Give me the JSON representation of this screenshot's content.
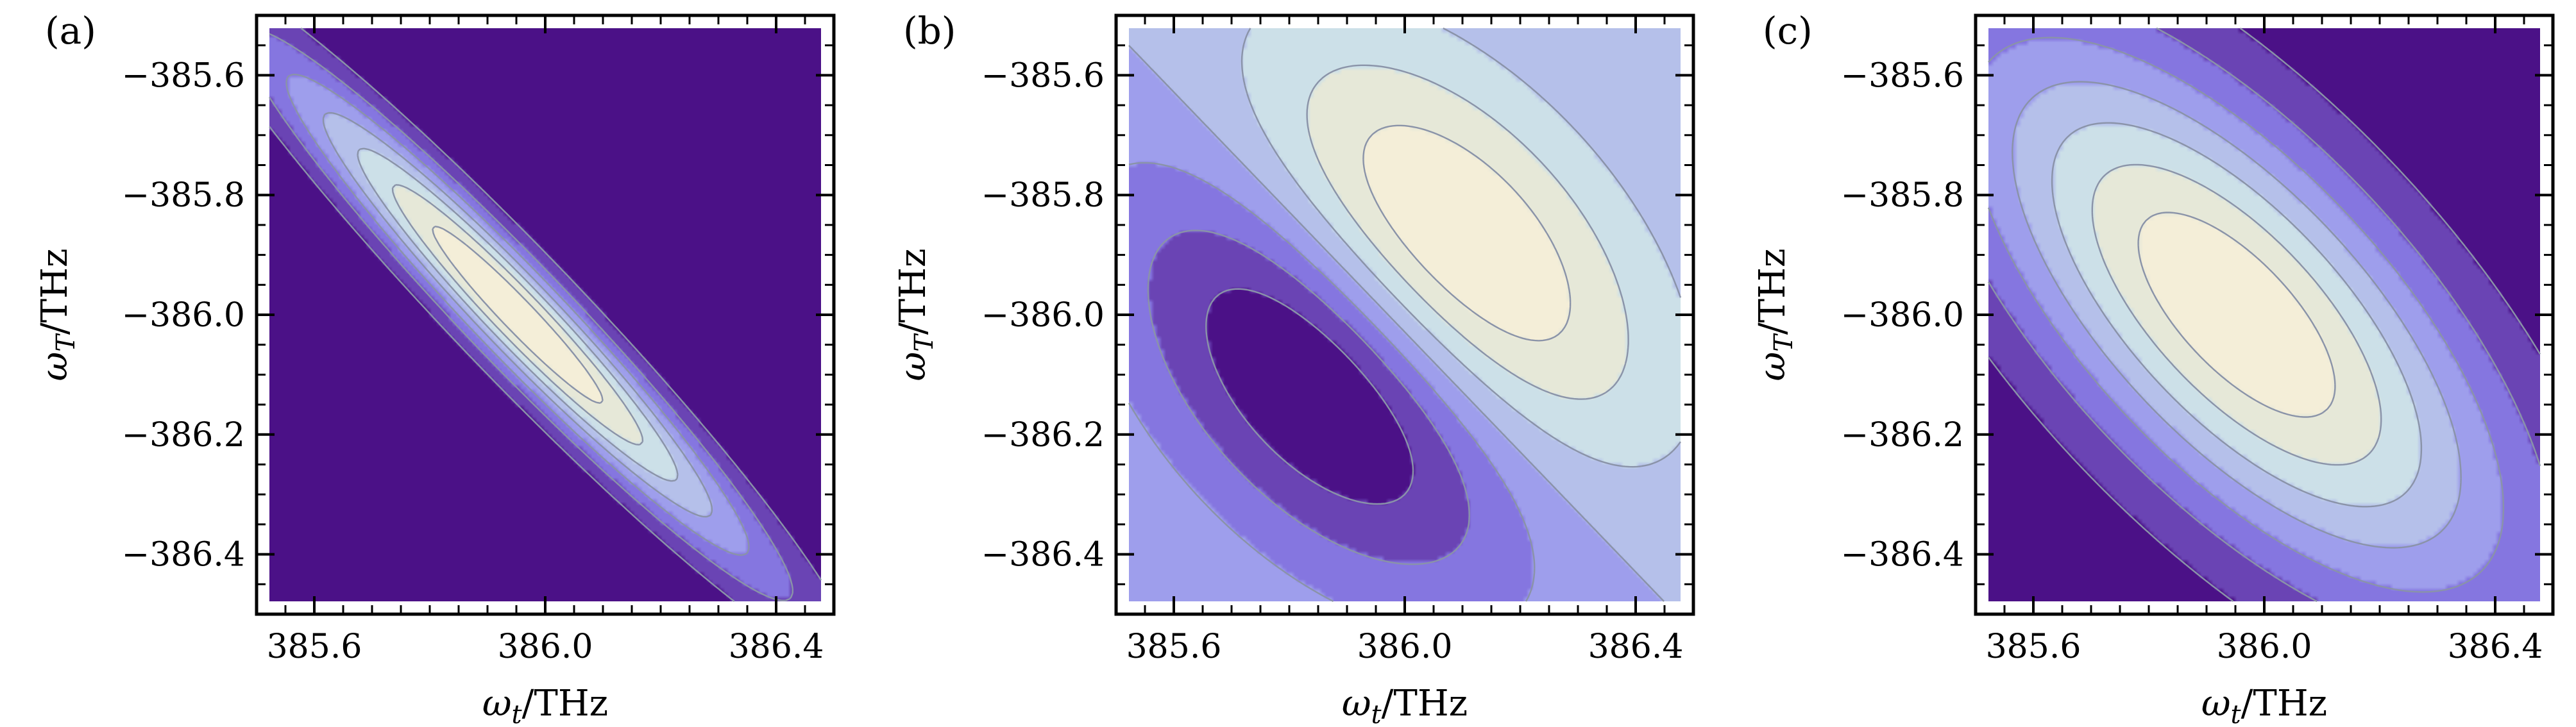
{
  "colors": {
    "levels": [
      "#4b1187",
      "#6a44b4",
      "#8576e0",
      "#9e9eec",
      "#b5c0ea",
      "#cce0e8",
      "#e6e8d8",
      "#f4eed8"
    ],
    "contour_line": "#8a93a8"
  },
  "chart_data": [
    {
      "type": "contour",
      "panel_label": "(a)",
      "xlabel": "ωt/THz",
      "xlabel_main": "ω",
      "xlabel_sub": "t",
      "xlabel_unit": "/THz",
      "ylabel": "ωT/THz",
      "ylabel_main": "ω",
      "ylabel_sub": "T",
      "ylabel_unit": "/THz",
      "xlim": [
        385.5,
        386.5
      ],
      "ylim": [
        -386.5,
        -385.5
      ],
      "xticks": [
        385.6,
        386.0,
        386.4
      ],
      "xtick_labels": [
        "385.6",
        "386.0",
        "386.4"
      ],
      "yticks": [
        -385.6,
        -385.8,
        -386.0,
        -386.2,
        -386.4
      ],
      "ytick_labels": [
        "−385.6",
        "−385.8",
        "−386.0",
        "−386.2",
        "−386.4"
      ],
      "grid": false,
      "surface": {
        "center": [
          385.95,
          -386.0
        ],
        "direction": [
          0.707,
          -0.707
        ],
        "sigma_along": 0.42,
        "sigma_across": 0.055,
        "dipole": 0,
        "levels": 8
      }
    },
    {
      "type": "contour",
      "panel_label": "(b)",
      "xlabel": "ωt/THz",
      "xlabel_main": "ω",
      "xlabel_sub": "t",
      "xlabel_unit": "/THz",
      "ylabel": "ωT/THz",
      "ylabel_main": "ω",
      "ylabel_sub": "T",
      "ylabel_unit": "/THz",
      "xlim": [
        385.5,
        386.5
      ],
      "ylim": [
        -386.5,
        -385.5
      ],
      "xticks": [
        385.6,
        386.0,
        386.4
      ],
      "xtick_labels": [
        "385.6",
        "386.0",
        "386.4"
      ],
      "yticks": [
        -385.6,
        -385.8,
        -386.0,
        -386.2,
        -386.4
      ],
      "ytick_labels": [
        "−385.6",
        "−385.8",
        "−386.0",
        "−386.2",
        "−386.4"
      ],
      "grid": false,
      "surface": {
        "center": [
          385.97,
          -386.0
        ],
        "direction": [
          0.707,
          -0.707
        ],
        "sigma_along": 0.32,
        "sigma_across": 0.2,
        "dipole": 1,
        "levels": 8
      }
    },
    {
      "type": "contour",
      "panel_label": "(c)",
      "xlabel": "ωt/THz",
      "xlabel_main": "ω",
      "xlabel_sub": "t",
      "xlabel_unit": "/THz",
      "ylabel": "ωT/THz",
      "ylabel_main": "ω",
      "ylabel_sub": "T",
      "ylabel_unit": "/THz",
      "xlim": [
        385.5,
        386.5
      ],
      "ylim": [
        -386.5,
        -385.5
      ],
      "xticks": [
        385.6,
        386.0,
        386.4
      ],
      "xtick_labels": [
        "385.6",
        "386.0",
        "386.4"
      ],
      "yticks": [
        -385.6,
        -385.8,
        -386.0,
        -386.2,
        -386.4
      ],
      "ytick_labels": [
        "−385.6",
        "−385.8",
        "−386.0",
        "−386.2",
        "−386.4"
      ],
      "grid": false,
      "surface": {
        "center": [
          385.95,
          -386.0
        ],
        "direction": [
          0.707,
          -0.707
        ],
        "sigma_along": 0.45,
        "sigma_across": 0.19,
        "dipole": 0,
        "levels": 8
      }
    }
  ]
}
